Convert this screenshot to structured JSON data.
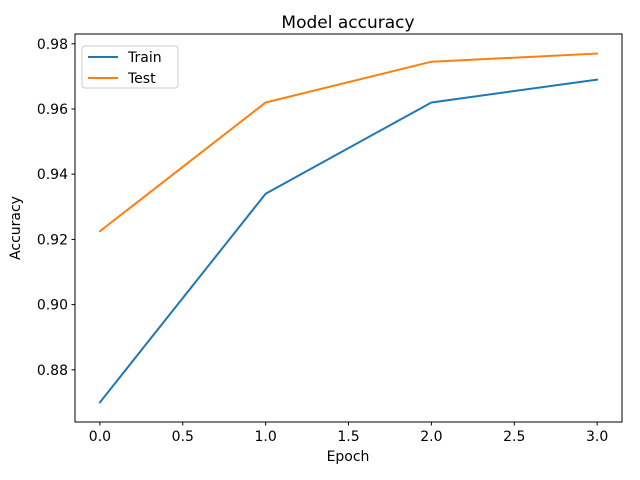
{
  "chart_data": {
    "type": "line",
    "title": "Model accuracy",
    "xlabel": "Epoch",
    "ylabel": "Accuracy",
    "x": [
      0,
      1,
      2,
      3
    ],
    "series": [
      {
        "name": "Train",
        "color": "#1f77b4",
        "values": [
          0.87,
          0.934,
          0.962,
          0.969
        ]
      },
      {
        "name": "Test",
        "color": "#ff7f0e",
        "values": [
          0.9225,
          0.962,
          0.9745,
          0.977
        ]
      }
    ],
    "xlim": [
      -0.15,
      3.15
    ],
    "ylim": [
      0.864,
      0.983
    ],
    "xticks": {
      "values": [
        0.0,
        0.5,
        1.0,
        1.5,
        2.0,
        2.5,
        3.0
      ],
      "labels": [
        "0.0",
        "0.5",
        "1.0",
        "1.5",
        "2.0",
        "2.5",
        "3.0"
      ]
    },
    "yticks": {
      "values": [
        0.88,
        0.9,
        0.92,
        0.94,
        0.96,
        0.98
      ],
      "labels": [
        "0.88",
        "0.90",
        "0.92",
        "0.94",
        "0.96",
        "0.98"
      ]
    },
    "legend": {
      "position": "upper left"
    },
    "grid": false,
    "line_width": 2,
    "axis_color": "#000000",
    "background": "#ffffff"
  }
}
